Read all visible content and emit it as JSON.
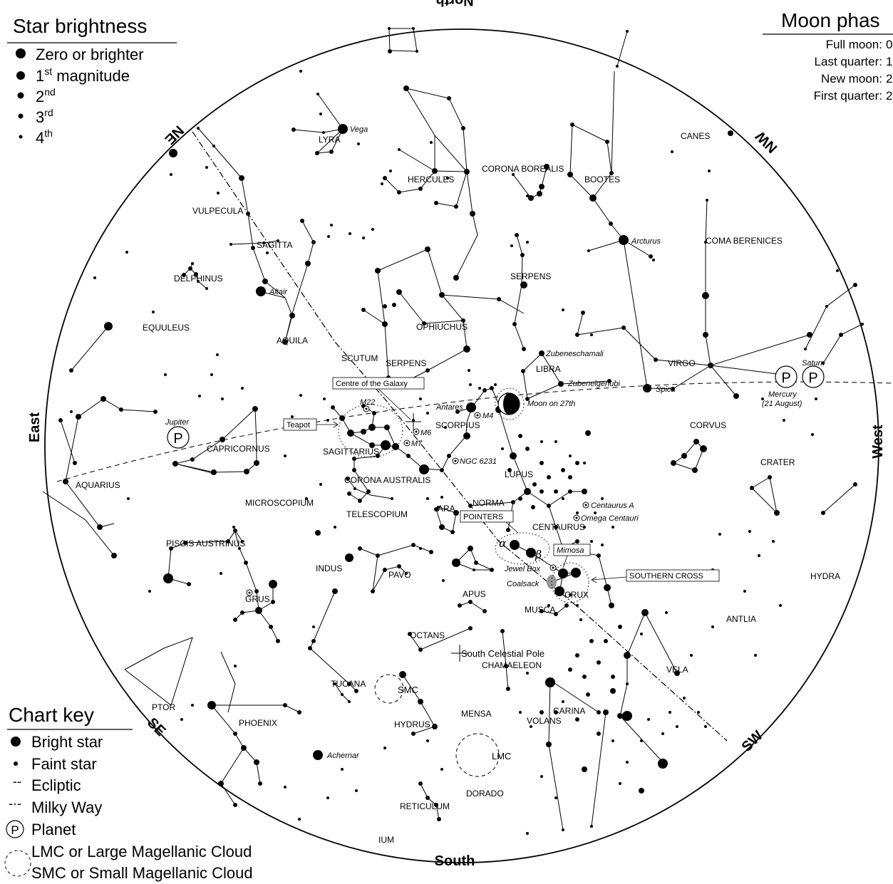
{
  "directions": {
    "north": "North",
    "south": "South",
    "east": "East",
    "west": "West",
    "ne": "NE",
    "nw": "NW",
    "se": "SE",
    "sw": "SW"
  },
  "star_brightness_legend": {
    "title": "Star brightness",
    "items": [
      {
        "label": "Zero or brighter",
        "sup": ""
      },
      {
        "label": "1",
        "sup": "st",
        "suffix": " magnitude"
      },
      {
        "label": "2",
        "sup": "nd",
        "suffix": ""
      },
      {
        "label": "3",
        "sup": "rd",
        "suffix": ""
      },
      {
        "label": "4",
        "sup": "th",
        "suffix": ""
      }
    ]
  },
  "moon_phases": {
    "title": "Moon phas",
    "items": [
      {
        "label": "Full moon:",
        "value": "0"
      },
      {
        "label": "Last quarter:",
        "value": "1"
      },
      {
        "label": "New moon:",
        "value": "2"
      },
      {
        "label": "First quarter:",
        "value": "2"
      }
    ]
  },
  "chart_key": {
    "title": "Chart key",
    "items": [
      {
        "symbol": "bright-star",
        "label": "Bright star"
      },
      {
        "symbol": "faint-star",
        "label": "Faint star"
      },
      {
        "symbol": "ecliptic",
        "marker": "--",
        "label": "Ecliptic"
      },
      {
        "symbol": "milky-way",
        "marker": "-·-",
        "label": "Milky Way"
      },
      {
        "symbol": "planet",
        "marker": "P",
        "label": "Planet"
      },
      {
        "symbol": "cloud",
        "label": "LMC or Large Magellanic Cloud"
      },
      {
        "symbol": "cloud",
        "label": "SMC or Small Magellanic Cloud"
      }
    ]
  },
  "constellations": [
    "LYRA",
    "HERCULES",
    "CORONA BOREALIS",
    "BOOTES",
    "CANES",
    "VULPECULA",
    "SAGITTA",
    "DELPHINUS",
    "COMA BERENICES",
    "SERPENS",
    "EQUULEUS",
    "AQUILA",
    "OPHIUCHUS",
    "SCUTUM",
    "SERPENS",
    "LIBRA",
    "VIRGO",
    "SCORPIUS",
    "CAPRICORNUS",
    "SAGITTARIUS",
    "CORVUS",
    "CRATER",
    "AQUARIUS",
    "CORONA AUSTRALIS",
    "LUPUS",
    "MICROSCOPIUM",
    "NORMA",
    "TELESCOPIUM",
    "ARA",
    "CENTAURUS",
    "PISCIS AUSTRINUS",
    "INDUS",
    "PAVO",
    "CRUX",
    "HYDRA",
    "GRUS",
    "APUS",
    "MUSCA",
    "ANTLIA",
    "OCTANS",
    "CHAMAELEON",
    "VELA",
    "TUCANA",
    "PTOR",
    "PHOENIX",
    "HYDRUS",
    "MENSA",
    "CARINA",
    "VOLANS",
    "DORADO",
    "RETICULUM",
    "IUM"
  ],
  "star_names": [
    "Vega",
    "Arcturus",
    "Altair",
    "Zubeneschamali",
    "Zubenelgenubi",
    "Spica",
    "Antares",
    "Achernar",
    "Mimosa"
  ],
  "objects": [
    "M22",
    "M4",
    "M6",
    "M7",
    "NGC 6231",
    "Centaurus A",
    "Omega Centauri",
    "Jewel Box",
    "Coalsack",
    "SMC",
    "LMC",
    "South Celestial Pole"
  ],
  "boxed_labels": {
    "centre_galaxy": "Centre of the Galaxy",
    "teapot": "Teapot",
    "pointers": "POINTERS",
    "southern_cross": "SOUTHERN CROSS",
    "mimosa": "Mimosa"
  },
  "greek": {
    "alpha": "α",
    "beta": "β"
  },
  "planets": {
    "jupiter": "Jupiter",
    "saturn": "Saturn",
    "mercury": "Mercury",
    "mercury_note": "(21 August)",
    "symbol": "P"
  },
  "moon_label": "Moon on 27th"
}
